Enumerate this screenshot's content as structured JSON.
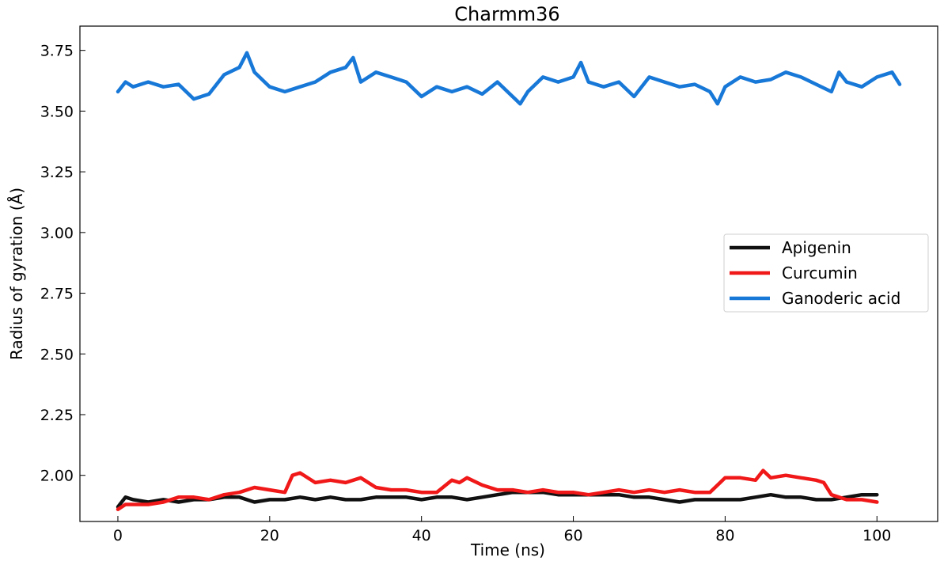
{
  "chart_data": {
    "type": "line",
    "title": "Charmm36",
    "xlabel": "Time (ns)",
    "ylabel": "Radius of gyration (Å)",
    "xlim": [
      -5,
      108
    ],
    "ylim": [
      1.81,
      3.85
    ],
    "xticks": [
      0,
      20,
      40,
      60,
      80,
      100
    ],
    "xtick_labels": [
      "0",
      "20",
      "40",
      "60",
      "80",
      "100"
    ],
    "yticks": [
      2.0,
      2.25,
      2.5,
      2.75,
      3.0,
      3.25,
      3.5,
      3.75
    ],
    "ytick_labels": [
      "2.00",
      "2.25",
      "2.50",
      "2.75",
      "3.00",
      "3.25",
      "3.50",
      "3.75"
    ],
    "grid": false,
    "legend_position": "center-right",
    "series": [
      {
        "name": "Apigenin",
        "color": "#111111",
        "x": [
          0,
          1,
          2,
          4,
          6,
          8,
          10,
          12,
          14,
          16,
          18,
          20,
          22,
          24,
          26,
          28,
          30,
          32,
          34,
          36,
          38,
          40,
          42,
          44,
          46,
          48,
          50,
          52,
          54,
          56,
          58,
          60,
          62,
          64,
          66,
          68,
          70,
          72,
          74,
          76,
          78,
          80,
          82,
          84,
          86,
          88,
          90,
          92,
          94,
          96,
          98,
          100
        ],
        "values": [
          1.87,
          1.91,
          1.9,
          1.89,
          1.9,
          1.89,
          1.9,
          1.9,
          1.91,
          1.91,
          1.89,
          1.9,
          1.9,
          1.91,
          1.9,
          1.91,
          1.9,
          1.9,
          1.91,
          1.91,
          1.91,
          1.9,
          1.91,
          1.91,
          1.9,
          1.91,
          1.92,
          1.93,
          1.93,
          1.93,
          1.92,
          1.92,
          1.92,
          1.92,
          1.92,
          1.91,
          1.91,
          1.9,
          1.89,
          1.9,
          1.9,
          1.9,
          1.9,
          1.91,
          1.92,
          1.91,
          1.91,
          1.9,
          1.9,
          1.91,
          1.92,
          1.92
        ]
      },
      {
        "name": "Curcumin",
        "color": "#f01818",
        "x": [
          0,
          1,
          2,
          4,
          6,
          8,
          10,
          12,
          14,
          16,
          18,
          20,
          22,
          23,
          24,
          26,
          28,
          30,
          32,
          34,
          36,
          38,
          40,
          42,
          44,
          45,
          46,
          48,
          50,
          52,
          54,
          56,
          58,
          60,
          62,
          64,
          66,
          68,
          70,
          72,
          74,
          76,
          78,
          80,
          82,
          84,
          85,
          86,
          88,
          90,
          92,
          93,
          94,
          96,
          98,
          100
        ],
        "values": [
          1.86,
          1.88,
          1.88,
          1.88,
          1.89,
          1.91,
          1.91,
          1.9,
          1.92,
          1.93,
          1.95,
          1.94,
          1.93,
          2.0,
          2.01,
          1.97,
          1.98,
          1.97,
          1.99,
          1.95,
          1.94,
          1.94,
          1.93,
          1.93,
          1.98,
          1.97,
          1.99,
          1.96,
          1.94,
          1.94,
          1.93,
          1.94,
          1.93,
          1.93,
          1.92,
          1.93,
          1.94,
          1.93,
          1.94,
          1.93,
          1.94,
          1.93,
          1.93,
          1.99,
          1.99,
          1.98,
          2.02,
          1.99,
          2.0,
          1.99,
          1.98,
          1.97,
          1.92,
          1.9,
          1.9,
          1.89
        ]
      },
      {
        "name": "Ganoderic acid",
        "color": "#1878d8",
        "x": [
          0,
          1,
          2,
          4,
          6,
          8,
          10,
          12,
          14,
          16,
          17,
          18,
          20,
          22,
          24,
          26,
          28,
          30,
          31,
          32,
          34,
          36,
          38,
          40,
          42,
          44,
          46,
          48,
          50,
          52,
          53,
          54,
          56,
          58,
          60,
          61,
          62,
          64,
          66,
          68,
          70,
          72,
          74,
          76,
          78,
          79,
          80,
          82,
          84,
          86,
          88,
          90,
          92,
          94,
          95,
          96,
          98,
          100,
          102,
          103
        ],
        "values": [
          3.58,
          3.62,
          3.6,
          3.62,
          3.6,
          3.61,
          3.55,
          3.57,
          3.65,
          3.68,
          3.74,
          3.66,
          3.6,
          3.58,
          3.6,
          3.62,
          3.66,
          3.68,
          3.72,
          3.62,
          3.66,
          3.64,
          3.62,
          3.56,
          3.6,
          3.58,
          3.6,
          3.57,
          3.62,
          3.56,
          3.53,
          3.58,
          3.64,
          3.62,
          3.64,
          3.7,
          3.62,
          3.6,
          3.62,
          3.56,
          3.64,
          3.62,
          3.6,
          3.61,
          3.58,
          3.53,
          3.6,
          3.64,
          3.62,
          3.63,
          3.66,
          3.64,
          3.61,
          3.58,
          3.66,
          3.62,
          3.6,
          3.64,
          3.66,
          3.61
        ]
      }
    ]
  }
}
